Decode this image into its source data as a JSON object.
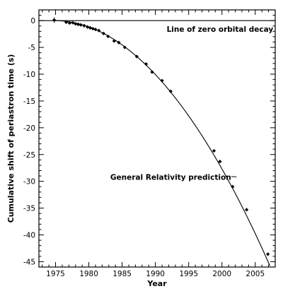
{
  "chart_data": {
    "type": "scatter",
    "title": "",
    "xlabel": "Year",
    "ylabel": "Cumulative shift of periastron time (s)",
    "xlim": [
      1972.5,
      2008
    ],
    "ylim": [
      -46,
      2
    ],
    "x_ticks": [
      1975,
      1980,
      1985,
      1990,
      1995,
      2000,
      2005
    ],
    "y_ticks": [
      0,
      -5,
      -10,
      -15,
      -20,
      -25,
      -30,
      -35,
      -40,
      -45
    ],
    "x_tick_labels": [
      "1975",
      "1980",
      "1985",
      "1990",
      "1995",
      "2000",
      "2005"
    ],
    "y_tick_labels": [
      "0",
      "-5",
      "-10",
      "-15",
      "-20",
      "-25",
      "-30",
      "-35",
      "-40",
      "-45"
    ],
    "grid": false,
    "legend": "none",
    "series": [
      {
        "kind": "points",
        "marker": "diamond",
        "x": [
          1974.8,
          1976.6,
          1977.1,
          1977.6,
          1978.0,
          1978.4,
          1978.8,
          1979.3,
          1979.8,
          1980.2,
          1980.6,
          1981.0,
          1981.5,
          1982.2,
          1982.9,
          1983.8,
          1984.5,
          1985.4,
          1987.2,
          1988.6,
          1989.5,
          1991.0,
          1992.3,
          1998.8,
          1999.7,
          2001.6,
          2003.7,
          2006.9
        ],
        "y": [
          0.1,
          -0.3,
          -0.45,
          -0.4,
          -0.6,
          -0.7,
          -0.8,
          -0.95,
          -1.2,
          -1.35,
          -1.5,
          -1.65,
          -1.85,
          -2.4,
          -2.95,
          -3.8,
          -4.1,
          -5.0,
          -6.7,
          -8.1,
          -9.6,
          -11.2,
          -13.2,
          -24.3,
          -26.3,
          -31.0,
          -35.3,
          -43.6
        ],
        "error": [
          0.5,
          0.3,
          0.2,
          0.2,
          0.2,
          0.2,
          0.2,
          0.2,
          0.2,
          0.2,
          0.2,
          0.2,
          0.2,
          0.2,
          0.2,
          0.2,
          0.2,
          0.2,
          0.2,
          0.2,
          0.2,
          0.2,
          0.2,
          0.2,
          0.2,
          0.2,
          0.3,
          0.3
        ]
      },
      {
        "kind": "curve",
        "x0": 1974.8,
        "quadratic_coefficient": -0.0436
      },
      {
        "kind": "hline",
        "y": 0
      }
    ],
    "annotations": [
      {
        "text": "Line of zero orbital decay",
        "x": 1999.7,
        "y": -2.1
      },
      {
        "text": "General Relativity prediction",
        "x": 1992.3,
        "y": -29.7,
        "arrow_to_x": 2001.4,
        "arrow_to_y": -29.1
      }
    ]
  }
}
